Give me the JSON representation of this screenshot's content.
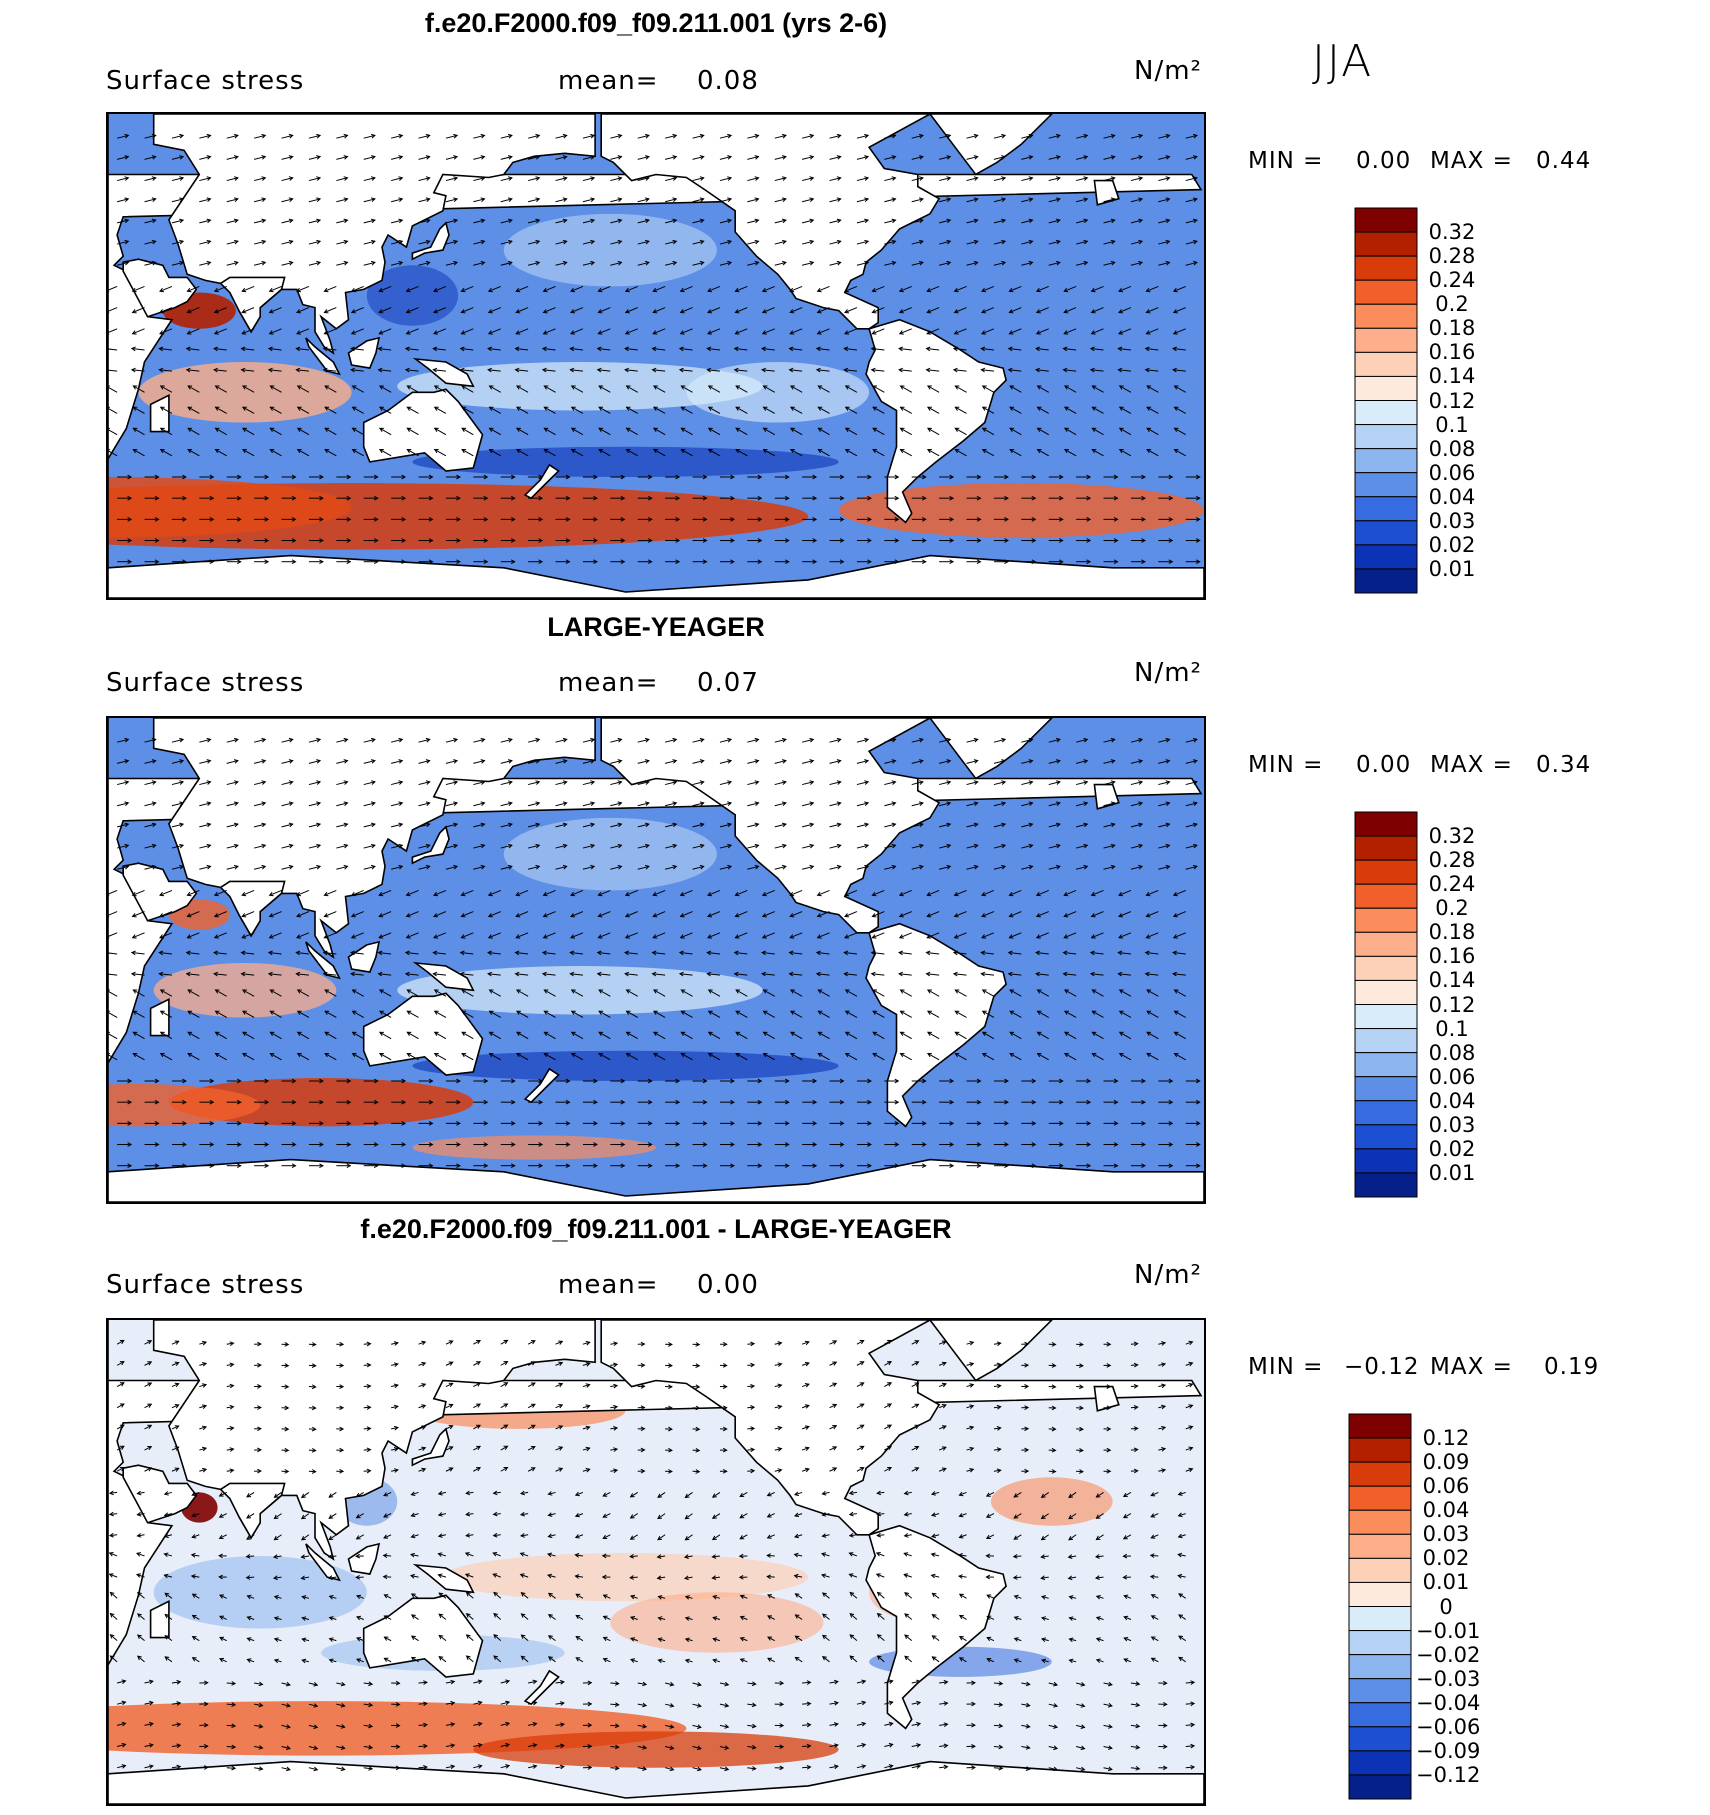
{
  "season": "JJA",
  "panels": [
    {
      "title": "f.e20.F2000.f09_f09.211.001 (yrs 2-6)",
      "variable": "Surface stress",
      "mean_label": "mean=",
      "mean_value": "0.08",
      "units": "N/m²",
      "min_label": "MIN =",
      "min_value": "0.00",
      "max_label": "MAX =",
      "max_value": "0.44",
      "kind": "model",
      "colorbar": {
        "labels": [
          "0.32",
          "0.28",
          "0.24",
          "0.2",
          "0.18",
          "0.16",
          "0.14",
          "0.12",
          "0.1",
          "0.08",
          "0.06",
          "0.04",
          "0.03",
          "0.02",
          "0.01"
        ],
        "colors": [
          "#7f0000",
          "#b22000",
          "#d83c0a",
          "#f1602a",
          "#fb8c5c",
          "#fdae8a",
          "#fdd0b8",
          "#fdeadc",
          "#d8ecfa",
          "#b5d2f5",
          "#8cb4ee",
          "#5e8fe6",
          "#366ce0",
          "#1d4fd3",
          "#0c33b5",
          "#06208a"
        ]
      }
    },
    {
      "title": "LARGE-YEAGER",
      "variable": "Surface stress",
      "mean_label": "mean=",
      "mean_value": "0.07",
      "units": "N/m²",
      "min_label": "MIN =",
      "min_value": "0.00",
      "max_label": "MAX =",
      "max_value": "0.34",
      "kind": "obs",
      "colorbar": {
        "labels": [
          "0.32",
          "0.28",
          "0.24",
          "0.2",
          "0.18",
          "0.16",
          "0.14",
          "0.12",
          "0.1",
          "0.08",
          "0.06",
          "0.04",
          "0.03",
          "0.02",
          "0.01"
        ],
        "colors": [
          "#7f0000",
          "#b22000",
          "#d83c0a",
          "#f1602a",
          "#fb8c5c",
          "#fdae8a",
          "#fdd0b8",
          "#fdeadc",
          "#d8ecfa",
          "#b5d2f5",
          "#8cb4ee",
          "#5e8fe6",
          "#366ce0",
          "#1d4fd3",
          "#0c33b5",
          "#06208a"
        ]
      }
    },
    {
      "title": "f.e20.F2000.f09_f09.211.001 - LARGE-YEAGER",
      "variable": "Surface stress",
      "mean_label": "mean=",
      "mean_value": "0.00",
      "units": "N/m²",
      "min_label": "MIN =",
      "min_value": "−0.12",
      "max_label": "MAX =",
      "max_value": "0.19",
      "kind": "diff",
      "colorbar": {
        "labels": [
          "0.12",
          "0.09",
          "0.06",
          "0.04",
          "0.03",
          "0.02",
          "0.01",
          "0",
          "−0.01",
          "−0.02",
          "−0.03",
          "−0.04",
          "−0.06",
          "−0.09",
          "−0.12"
        ],
        "colors": [
          "#7f0000",
          "#b22000",
          "#d83c0a",
          "#f1602a",
          "#fb8c5c",
          "#fdae8a",
          "#fdd0b8",
          "#fdeadc",
          "#d8ecfa",
          "#b5d2f5",
          "#8cb4ee",
          "#5e8fe6",
          "#366ce0",
          "#1d4fd3",
          "#0c33b5",
          "#06208a"
        ]
      }
    }
  ]
}
